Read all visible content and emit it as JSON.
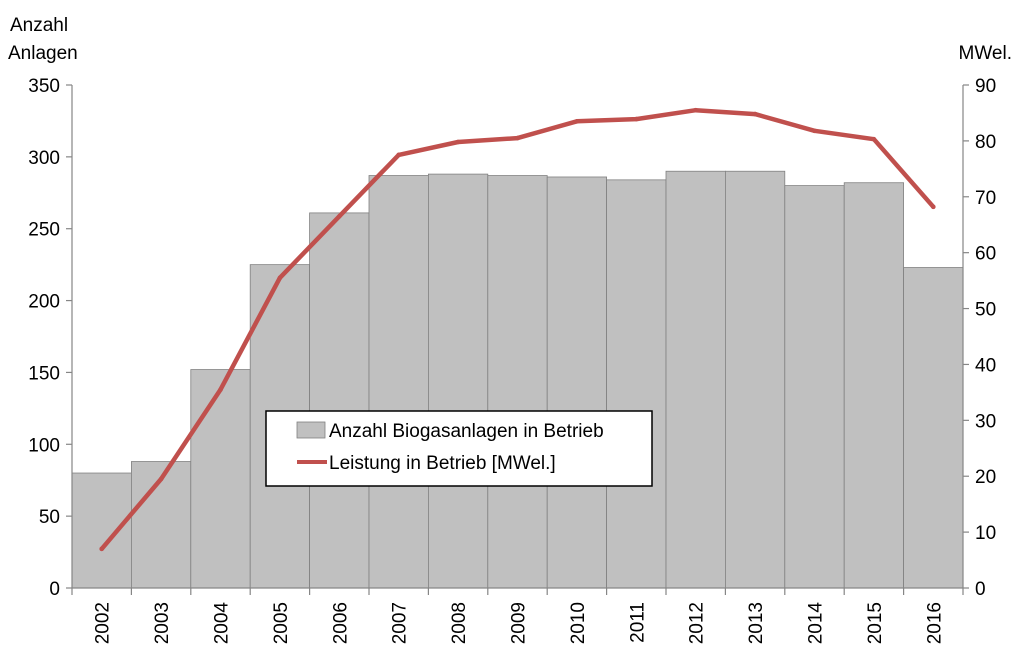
{
  "chart_data": {
    "type": "bar",
    "categories": [
      "2002",
      "2003",
      "2004",
      "2005",
      "2006",
      "2007",
      "2008",
      "2009",
      "2010",
      "2011",
      "2012",
      "2013",
      "2014",
      "2015",
      "2016"
    ],
    "series": [
      {
        "name": "Anzahl Biogasanlagen in Betrieb",
        "type": "bar",
        "axis": "left",
        "color": "#c0c0c0",
        "values": [
          80,
          88,
          152,
          225,
          261,
          287,
          288,
          287,
          286,
          284,
          290,
          290,
          280,
          282,
          223
        ]
      },
      {
        "name": "Leistung in Betrieb [MWel.]",
        "type": "line",
        "axis": "right",
        "color": "#c0504d",
        "values": [
          7,
          19.5,
          35.5,
          55.5,
          66.5,
          77.5,
          79.8,
          80.5,
          83.5,
          83.9,
          85.5,
          84.8,
          81.8,
          80.3,
          68.2
        ]
      }
    ],
    "y_left": {
      "label_line1": "Anzahl",
      "label_line2": "Anlagen",
      "ylim": [
        0,
        350
      ],
      "ticks": [
        0,
        50,
        100,
        150,
        200,
        250,
        300,
        350
      ]
    },
    "y_right": {
      "label": "MWel.",
      "ylim": [
        0,
        90
      ],
      "ticks": [
        0,
        10,
        20,
        30,
        40,
        50,
        60,
        70,
        80,
        90
      ]
    },
    "legend": {
      "placement": "center"
    },
    "grid": false
  }
}
